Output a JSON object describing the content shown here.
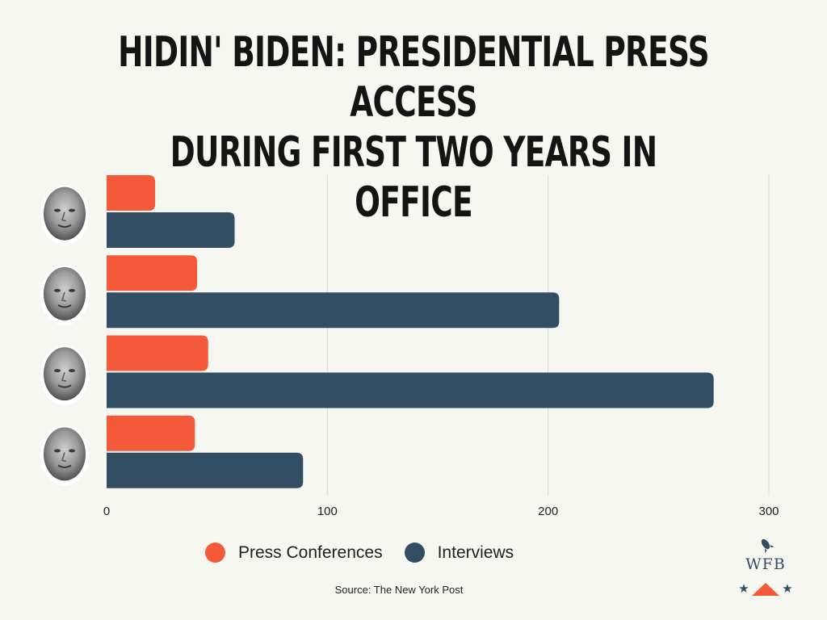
{
  "chart_data": {
    "type": "bar",
    "orientation": "horizontal",
    "title_lines": [
      "HIDIN' BIDEN: PRESIDENTIAL PRESS ACCESS",
      "DURING FIRST TWO YEARS IN OFFICE"
    ],
    "categories_images": [
      "biden-portrait",
      "trump-portrait",
      "obama-portrait",
      "bush-portrait"
    ],
    "series": [
      {
        "name": "Press Conferences",
        "color": "#f45a3a",
        "values": [
          22,
          41,
          46,
          40
        ]
      },
      {
        "name": "Interviews",
        "color": "#334e63",
        "values": [
          58,
          205,
          275,
          89
        ]
      }
    ],
    "xlim": [
      0,
      300
    ],
    "xticks": [
      0,
      100,
      200,
      300
    ],
    "grid": true,
    "legend_position": "bottom"
  },
  "source": "Source: The New York Post",
  "logo": {
    "text": "WFB",
    "star_color": "#334e63",
    "accent_color": "#f45a3a"
  }
}
